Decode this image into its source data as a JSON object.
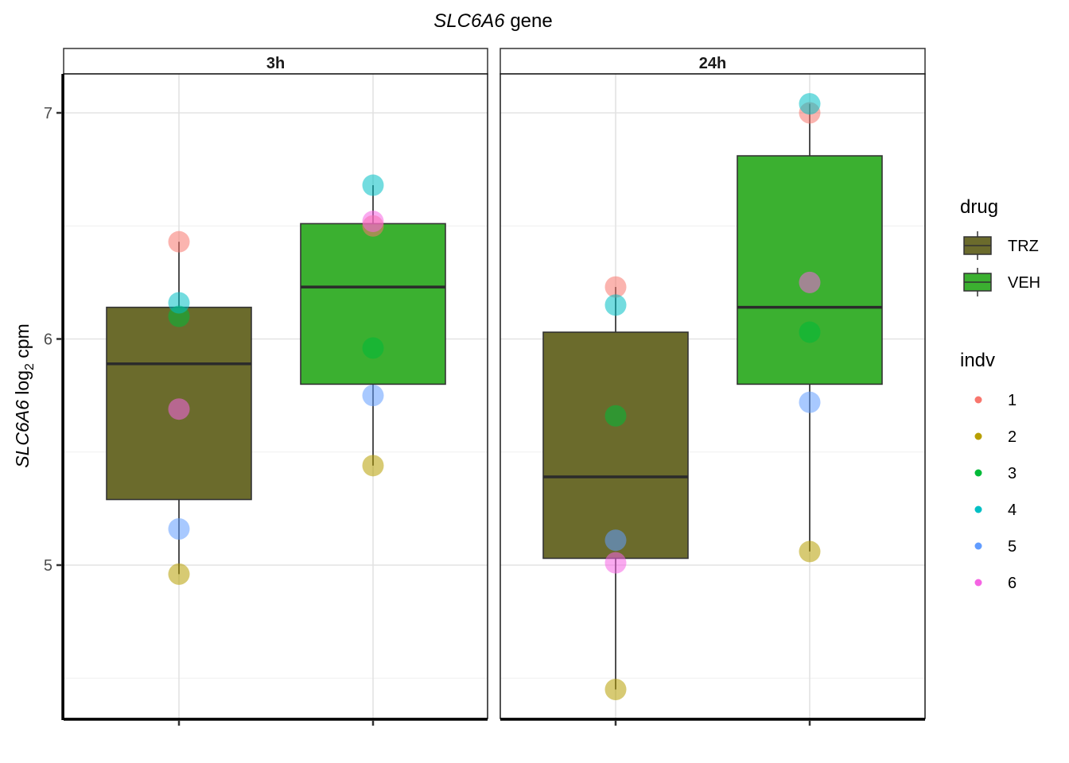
{
  "chart_data": {
    "type": "box",
    "title": {
      "italic": "SLC6A6",
      "rest": " gene"
    },
    "ylabel": {
      "italic": "SLC6A6",
      "pre": " log",
      "sub": "2",
      "post": " cpm"
    },
    "xlabel": "",
    "ylim": [
      4.45,
      7.3
    ],
    "yticks": [
      "5",
      "6",
      "7"
    ],
    "grid": true,
    "panels": [
      "3h",
      "24h"
    ],
    "categories": [
      "TRZ",
      "VEH"
    ],
    "colors": {
      "TRZ": "#6b6b2c",
      "VEH": "#3bb030",
      "indv": {
        "1": "#f8766d",
        "2": "#b79f00",
        "3": "#00ba38",
        "4": "#00bfc4",
        "5": "#619cff",
        "6": "#f564e3"
      }
    },
    "boxes": [
      {
        "panel": "3h",
        "drug": "TRZ",
        "min": 4.96,
        "q1": 5.29,
        "median": 5.89,
        "q3": 6.14,
        "max": 6.43
      },
      {
        "panel": "3h",
        "drug": "VEH",
        "min": 5.44,
        "q1": 5.8,
        "median": 6.23,
        "q3": 6.51,
        "max": 6.68
      },
      {
        "panel": "24h",
        "drug": "TRZ",
        "min": 4.45,
        "q1": 5.03,
        "median": 5.39,
        "q3": 6.03,
        "max": 6.23
      },
      {
        "panel": "24h",
        "drug": "VEH",
        "min": 5.06,
        "q1": 5.8,
        "median": 6.14,
        "q3": 6.81,
        "max": 7.04
      }
    ],
    "points": [
      {
        "panel": "3h",
        "drug": "TRZ",
        "indv": "1",
        "y": 6.43
      },
      {
        "panel": "3h",
        "drug": "TRZ",
        "indv": "2",
        "y": 4.96
      },
      {
        "panel": "3h",
        "drug": "TRZ",
        "indv": "3",
        "y": 6.1
      },
      {
        "panel": "3h",
        "drug": "TRZ",
        "indv": "4",
        "y": 6.16
      },
      {
        "panel": "3h",
        "drug": "TRZ",
        "indv": "5",
        "y": 5.16
      },
      {
        "panel": "3h",
        "drug": "TRZ",
        "indv": "6",
        "y": 5.69
      },
      {
        "panel": "3h",
        "drug": "VEH",
        "indv": "1",
        "y": 6.5
      },
      {
        "panel": "3h",
        "drug": "VEH",
        "indv": "2",
        "y": 5.44
      },
      {
        "panel": "3h",
        "drug": "VEH",
        "indv": "3",
        "y": 5.96
      },
      {
        "panel": "3h",
        "drug": "VEH",
        "indv": "4",
        "y": 6.68
      },
      {
        "panel": "3h",
        "drug": "VEH",
        "indv": "5",
        "y": 5.75
      },
      {
        "panel": "3h",
        "drug": "VEH",
        "indv": "6",
        "y": 6.52
      },
      {
        "panel": "24h",
        "drug": "TRZ",
        "indv": "1",
        "y": 6.23
      },
      {
        "panel": "24h",
        "drug": "TRZ",
        "indv": "2",
        "y": 4.45
      },
      {
        "panel": "24h",
        "drug": "TRZ",
        "indv": "3",
        "y": 5.66
      },
      {
        "panel": "24h",
        "drug": "TRZ",
        "indv": "4",
        "y": 6.15
      },
      {
        "panel": "24h",
        "drug": "TRZ",
        "indv": "5",
        "y": 5.11
      },
      {
        "panel": "24h",
        "drug": "TRZ",
        "indv": "6",
        "y": 5.01
      },
      {
        "panel": "24h",
        "drug": "VEH",
        "indv": "1",
        "y": 7.0
      },
      {
        "panel": "24h",
        "drug": "VEH",
        "indv": "2",
        "y": 5.06
      },
      {
        "panel": "24h",
        "drug": "VEH",
        "indv": "3",
        "y": 6.03
      },
      {
        "panel": "24h",
        "drug": "VEH",
        "indv": "4",
        "y": 7.04
      },
      {
        "panel": "24h",
        "drug": "VEH",
        "indv": "5",
        "y": 5.72
      },
      {
        "panel": "24h",
        "drug": "VEH",
        "indv": "6",
        "y": 6.25
      }
    ],
    "legend": {
      "placement": "right",
      "drug_title": "drug",
      "drug_items": [
        "TRZ",
        "VEH"
      ],
      "indv_title": "indv",
      "indv_items": [
        "1",
        "2",
        "3",
        "4",
        "5",
        "6"
      ]
    }
  }
}
